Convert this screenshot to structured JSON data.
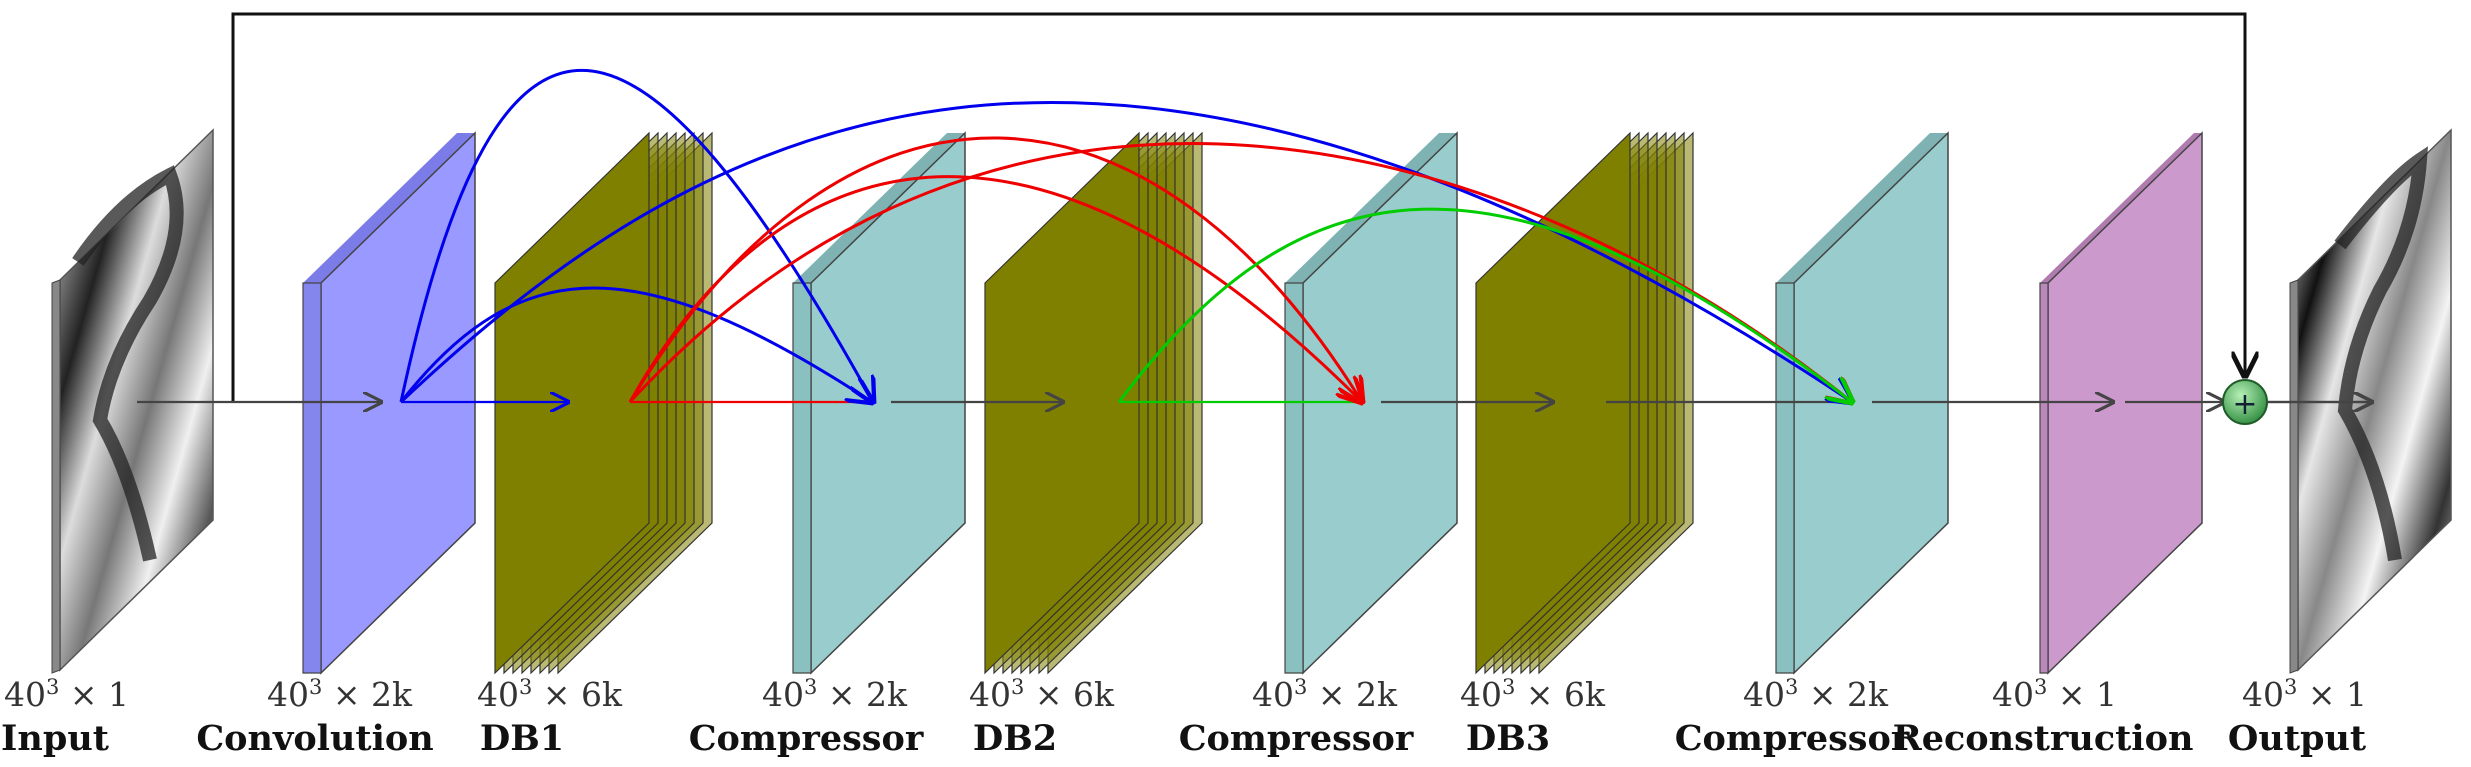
{
  "layers": [
    {
      "id": "input",
      "name": "Input",
      "dim": {
        "base": "40",
        "exp": "3",
        "rest": " × 1"
      }
    },
    {
      "id": "conv",
      "name": "Convolution",
      "dim": {
        "base": "40",
        "exp": "3",
        "rest": " × 2k"
      }
    },
    {
      "id": "db1",
      "name": "DB1",
      "dim": {
        "base": "40",
        "exp": "3",
        "rest": " × 6k"
      }
    },
    {
      "id": "comp1",
      "name": "Compressor",
      "dim": {
        "base": "40",
        "exp": "3",
        "rest": " × 2k"
      }
    },
    {
      "id": "db2",
      "name": "DB2",
      "dim": {
        "base": "40",
        "exp": "3",
        "rest": " × 6k"
      }
    },
    {
      "id": "comp2",
      "name": "Compressor",
      "dim": {
        "base": "40",
        "exp": "3",
        "rest": " × 2k"
      }
    },
    {
      "id": "db3",
      "name": "DB3",
      "dim": {
        "base": "40",
        "exp": "3",
        "rest": " × 6k"
      }
    },
    {
      "id": "comp3",
      "name": "Compressor",
      "dim": {
        "base": "40",
        "exp": "3",
        "rest": " × 2k"
      }
    },
    {
      "id": "recon",
      "name": "Reconstruction",
      "dim": {
        "base": "40",
        "exp": "3",
        "rest": " × 1"
      }
    },
    {
      "id": "output",
      "name": "Output",
      "dim": {
        "base": "40",
        "exp": "3",
        "rest": " × 1"
      }
    }
  ],
  "add_symbol": "+",
  "colors": {
    "convolution": "#9999ff",
    "dense_block": "#808000",
    "compressor": "#99cccc",
    "reconstruction": "#cc99cc",
    "skip_blue": "#0000ee",
    "skip_red": "#ee0000",
    "skip_green": "#00dd00",
    "main_flow": "#444444",
    "add_node": "#4caf50"
  },
  "icons": [
    "add-node-icon",
    "input-image-icon",
    "output-image-icon"
  ]
}
